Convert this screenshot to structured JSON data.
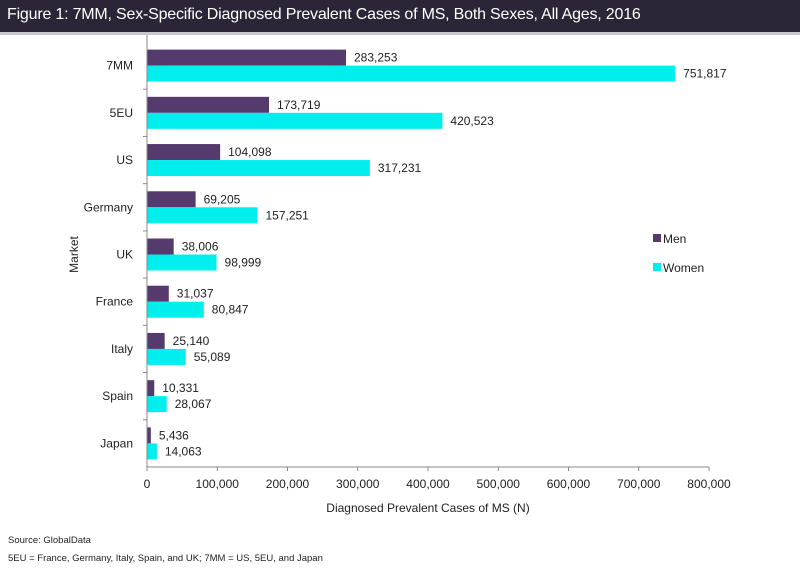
{
  "figure_title": "Figure 1: 7MM, Sex-Specific Diagnosed Prevalent Cases of MS, Both Sexes, All Ages, 2016",
  "footnotes": {
    "source": "Source: GlobalData",
    "definitions": "5EU = France, Germany, Italy, Spain, and UK; 7MM = US, 5EU, and Japan"
  },
  "chart_data": {
    "type": "bar",
    "orientation": "horizontal",
    "title": "Figure 1: 7MM, Sex-Specific Diagnosed Prevalent Cases of MS, Both Sexes, All Ages, 2016",
    "xlabel": "Diagnosed Prevalent Cases of MS (N)",
    "ylabel": "Market",
    "categories": [
      "7MM",
      "5EU",
      "US",
      "Germany",
      "UK",
      "France",
      "Italy",
      "Spain",
      "Japan"
    ],
    "series": [
      {
        "name": "Men",
        "color": "#553a6e",
        "values": [
          283253,
          173719,
          104098,
          69205,
          38006,
          31037,
          25140,
          10331,
          5436
        ],
        "labels": [
          "283,253",
          "173,719",
          "104,098",
          "69,205",
          "38,006",
          "31,037",
          "25,140",
          "10,331",
          "5,436"
        ]
      },
      {
        "name": "Women",
        "color": "#00eeee",
        "values": [
          751817,
          420523,
          317231,
          157251,
          98999,
          80847,
          55089,
          28067,
          14063
        ],
        "labels": [
          "751,817",
          "420,523",
          "317,231",
          "157,251",
          "98,999",
          "80,847",
          "55,089",
          "28,067",
          "14,063"
        ]
      }
    ],
    "xlim": [
      0,
      800000
    ],
    "xticks": [
      0,
      100000,
      200000,
      300000,
      400000,
      500000,
      600000,
      700000,
      800000
    ],
    "xtick_labels": [
      "0",
      "100,000",
      "200,000",
      "300,000",
      "400,000",
      "500,000",
      "600,000",
      "700,000",
      "800,000"
    ],
    "grid": false,
    "legend": {
      "position": "right",
      "entries": [
        "Men",
        "Women"
      ]
    },
    "data_labels": true
  }
}
